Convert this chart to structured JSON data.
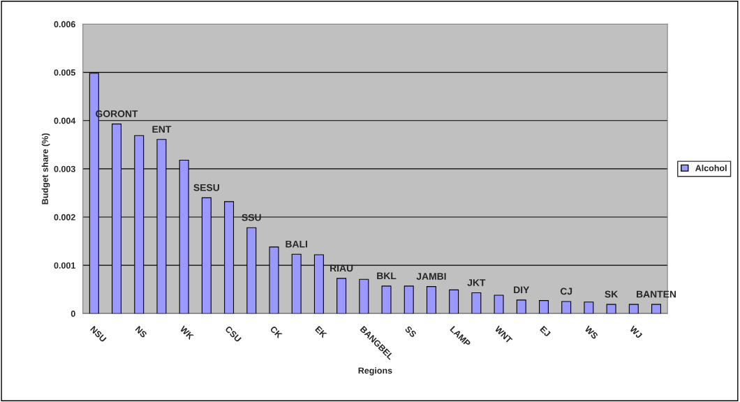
{
  "chart_data": {
    "type": "bar",
    "xlabel": "Regions",
    "ylabel": "Budget share (%)",
    "categories": [
      "NSU",
      null,
      "NS",
      null,
      "WK",
      null,
      "CSU",
      null,
      "CK",
      null,
      "EK",
      null,
      "BANGBEL",
      null,
      "SS",
      null,
      "LAMP",
      null,
      "WNT",
      null,
      "EJ",
      null,
      "WS",
      null,
      "WJ",
      null
    ],
    "series": [
      {
        "name": "Alcohol",
        "color": "#9999ff",
        "values": [
          0.00498,
          0.00393,
          0.00369,
          0.00361,
          0.00318,
          0.0024,
          0.00232,
          0.00178,
          0.00138,
          0.00123,
          0.00122,
          0.00073,
          0.00071,
          0.00057,
          0.00057,
          0.00056,
          0.00049,
          0.00043,
          0.00038,
          0.00028,
          0.00027,
          0.00025,
          0.00024,
          0.00019,
          0.00019,
          0.00019
        ],
        "value_labels": [
          null,
          "GORONT",
          null,
          "ENT",
          null,
          "SESU",
          null,
          "SSU",
          null,
          "BALI",
          null,
          "RIAU",
          null,
          "BKL",
          null,
          "JAMBI",
          null,
          "JKT",
          null,
          "DIY",
          null,
          "CJ",
          null,
          "SK",
          null,
          "BANTEN"
        ]
      }
    ],
    "ylim": [
      0,
      0.006
    ],
    "yticks": [
      0,
      0.001,
      0.002,
      0.003,
      0.004,
      0.005,
      0.006
    ],
    "grid": "y",
    "legend": "right"
  }
}
